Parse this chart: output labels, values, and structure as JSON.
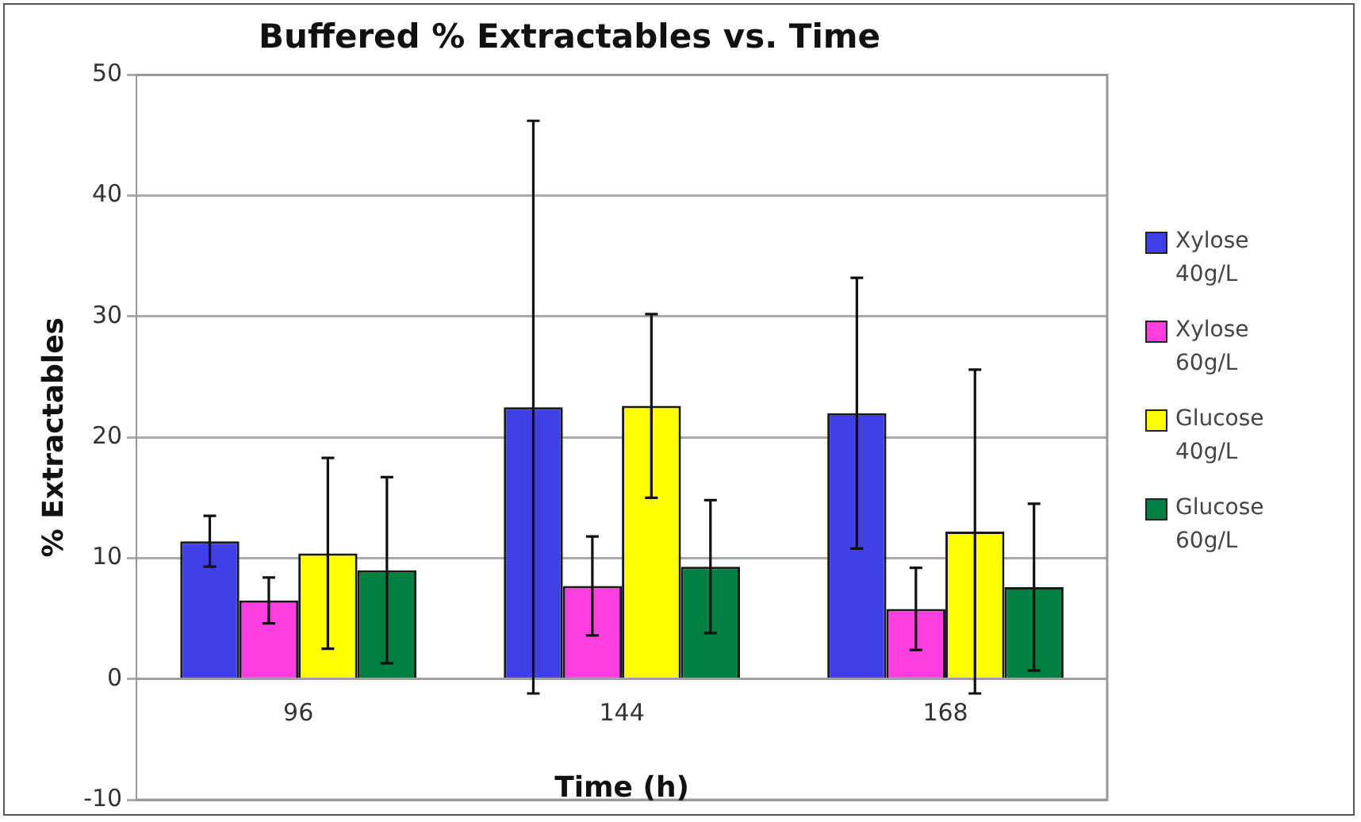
{
  "chart_data": {
    "type": "bar",
    "title": "Buffered % Extractables vs. Time",
    "xlabel": "Time (h)",
    "ylabel": "% Extractables",
    "categories": [
      "96",
      "144",
      "168"
    ],
    "series": [
      {
        "name": "Xylose 40g/L",
        "color": "#4040e8",
        "values": [
          11.4,
          22.5,
          22.0
        ],
        "errors": [
          2.1,
          23.7,
          11.2
        ]
      },
      {
        "name": "Xylose 60g/L",
        "color": "#ff40e0",
        "values": [
          6.5,
          7.7,
          5.8
        ],
        "errors": [
          1.9,
          4.1,
          3.4
        ]
      },
      {
        "name": "Glucose 40g/L",
        "color": "#ffff00",
        "values": [
          10.4,
          22.6,
          12.2
        ],
        "errors": [
          7.9,
          7.6,
          13.4
        ]
      },
      {
        "name": "Glucose 60g/L",
        "color": "#008040",
        "values": [
          9.0,
          9.3,
          7.6
        ],
        "errors": [
          7.7,
          5.5,
          6.9
        ]
      }
    ],
    "ylim": [
      -10,
      50
    ],
    "yticks": [
      -10,
      0,
      10,
      20,
      30,
      40,
      50
    ],
    "grid": "y",
    "legend": "right"
  }
}
